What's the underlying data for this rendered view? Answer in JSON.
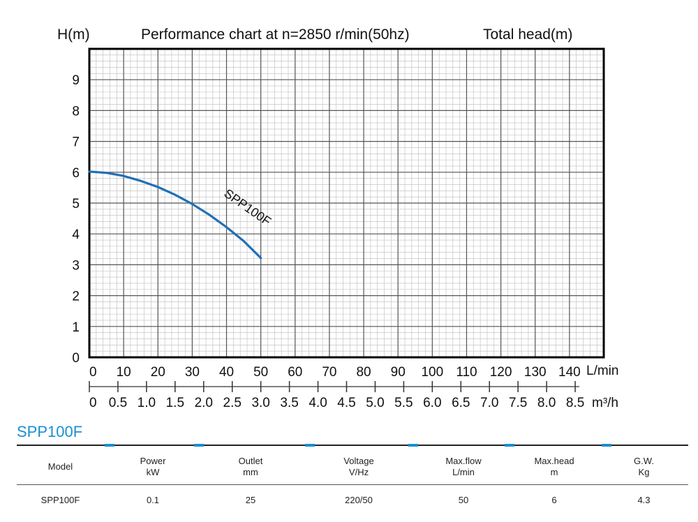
{
  "chart_data": {
    "type": "line",
    "title": "Performance chart at n=2850 r/min(50hz)",
    "subtitle": "Total head(m)",
    "ylabel": "H(m)",
    "ylim": [
      0,
      10
    ],
    "yticks": [
      "0",
      "1",
      "2",
      "3",
      "4",
      "5",
      "6",
      "7",
      "8",
      "9"
    ],
    "xlabel": "L/min",
    "xlim": [
      0,
      150
    ],
    "xticks": [
      "0",
      "10",
      "20",
      "30",
      "40",
      "50",
      "60",
      "70",
      "80",
      "90",
      "100",
      "110",
      "120",
      "130",
      "140"
    ],
    "xlabel2": "m³/h",
    "xticks2": [
      "0",
      "0.5",
      "1.0",
      "1.5",
      "2.0",
      "2.5",
      "3.0",
      "3.5",
      "4.0",
      "4.5",
      "5.0",
      "5.5",
      "6.0",
      "6.5",
      "7.0",
      "7.5",
      "8.0",
      "8.5"
    ],
    "grid": true,
    "series": [
      {
        "name": "SPP100F",
        "color": "#1f6fb8",
        "points": [
          {
            "x": 0,
            "y": 6.02
          },
          {
            "x": 5,
            "y": 5.98
          },
          {
            "x": 10,
            "y": 5.88
          },
          {
            "x": 15,
            "y": 5.72
          },
          {
            "x": 20,
            "y": 5.52
          },
          {
            "x": 25,
            "y": 5.27
          },
          {
            "x": 30,
            "y": 4.97
          },
          {
            "x": 35,
            "y": 4.62
          },
          {
            "x": 40,
            "y": 4.22
          },
          {
            "x": 45,
            "y": 3.77
          },
          {
            "x": 50,
            "y": 3.22
          }
        ]
      }
    ]
  },
  "model_heading": "SPP100F",
  "table": {
    "headers": [
      [
        "Model",
        ""
      ],
      [
        "Power",
        "kW"
      ],
      [
        "Outlet",
        "mm"
      ],
      [
        "Voltage",
        "V/Hz"
      ],
      [
        "Max.flow",
        "L/min"
      ],
      [
        "Max.head",
        "m"
      ],
      [
        "G.W.",
        "Kg"
      ]
    ],
    "rows": [
      [
        "SPP100F",
        "0.1",
        "25",
        "220/50",
        "50",
        "6",
        "4.3"
      ]
    ]
  },
  "colors": {
    "accent": "#1a8fd0",
    "curve": "#1f6fb8",
    "grid_major": "#555555",
    "grid_minor": "#bbbbbb"
  }
}
